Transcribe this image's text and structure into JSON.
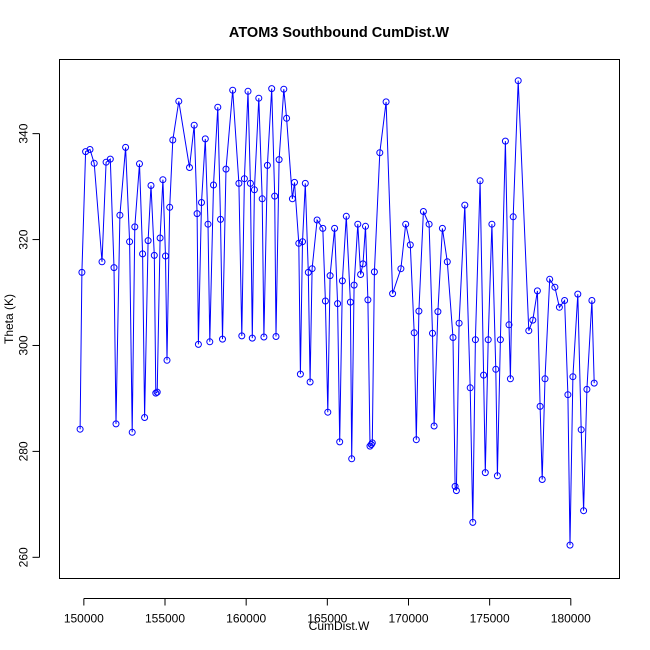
{
  "chart_data": {
    "type": "line",
    "title": "ATOM3 Southbound CumDist.W",
    "xlabel": "CumDist.W",
    "ylabel": "Theta (K)",
    "xlim": [
      148500,
      183000
    ],
    "ylim": [
      256,
      354
    ],
    "x_ticks": [
      150000,
      155000,
      160000,
      165000,
      170000,
      175000,
      180000
    ],
    "x_tick_labels": [
      "150000",
      "155000",
      "160000",
      "165000",
      "170000",
      "175000",
      "180000"
    ],
    "y_ticks": [
      260,
      280,
      300,
      320,
      340
    ],
    "y_tick_labels": [
      "260",
      "280",
      "300",
      "320",
      "340"
    ],
    "grid": false,
    "colors": {
      "series": "#0000ff",
      "axes": "#000000"
    },
    "series": [
      {
        "markers": "open-circle",
        "points": [
          [
            149770,
            284.2
          ],
          [
            149880,
            313.8
          ],
          [
            150110,
            336.6
          ],
          [
            150380,
            337.0
          ],
          [
            150640,
            334.4
          ],
          [
            151120,
            315.8
          ],
          [
            151370,
            334.6
          ],
          [
            151630,
            335.2
          ],
          [
            151860,
            314.7
          ],
          [
            151980,
            285.2
          ],
          [
            152220,
            324.6
          ],
          [
            152570,
            337.4
          ],
          [
            152820,
            319.6
          ],
          [
            152980,
            283.6
          ],
          [
            153140,
            322.4
          ],
          [
            153430,
            334.3
          ],
          [
            153620,
            317.3
          ],
          [
            153740,
            286.4
          ],
          [
            153960,
            319.8
          ],
          [
            154140,
            330.2
          ],
          [
            154340,
            317.0
          ],
          [
            154430,
            291.0
          ],
          [
            154520,
            291.2
          ],
          [
            154700,
            320.3
          ],
          [
            154870,
            331.3
          ],
          [
            155030,
            316.9
          ],
          [
            155120,
            297.2
          ],
          [
            155290,
            326.1
          ],
          [
            155480,
            338.8
          ],
          [
            155850,
            346.1
          ],
          [
            156510,
            333.6
          ],
          [
            156800,
            341.6
          ],
          [
            156980,
            324.9
          ],
          [
            157060,
            300.2
          ],
          [
            157250,
            327.0
          ],
          [
            157480,
            339.0
          ],
          [
            157650,
            322.9
          ],
          [
            157760,
            300.7
          ],
          [
            157990,
            330.3
          ],
          [
            158250,
            345.0
          ],
          [
            158420,
            323.8
          ],
          [
            158540,
            301.2
          ],
          [
            158760,
            333.3
          ],
          [
            159170,
            348.2
          ],
          [
            159550,
            330.6
          ],
          [
            159730,
            301.8
          ],
          [
            159890,
            331.5
          ],
          [
            160110,
            348.0
          ],
          [
            160260,
            330.6
          ],
          [
            160380,
            301.4
          ],
          [
            160510,
            329.4
          ],
          [
            160780,
            346.7
          ],
          [
            160990,
            327.7
          ],
          [
            161090,
            301.6
          ],
          [
            161310,
            334.0
          ],
          [
            161570,
            348.5
          ],
          [
            161760,
            328.2
          ],
          [
            161840,
            301.7
          ],
          [
            162030,
            335.1
          ],
          [
            162320,
            348.4
          ],
          [
            162490,
            342.9
          ],
          [
            162850,
            327.7
          ],
          [
            162980,
            330.8
          ],
          [
            163240,
            319.3
          ],
          [
            163340,
            294.6
          ],
          [
            163470,
            319.6
          ],
          [
            163640,
            330.6
          ],
          [
            163830,
            313.8
          ],
          [
            163940,
            293.1
          ],
          [
            164060,
            314.5
          ],
          [
            164370,
            323.7
          ],
          [
            164720,
            322.1
          ],
          [
            164880,
            308.4
          ],
          [
            165030,
            287.4
          ],
          [
            165170,
            313.2
          ],
          [
            165450,
            322.1
          ],
          [
            165630,
            307.9
          ],
          [
            165760,
            281.8
          ],
          [
            165930,
            312.2
          ],
          [
            166170,
            324.4
          ],
          [
            166420,
            308.2
          ],
          [
            166500,
            278.6
          ],
          [
            166650,
            311.4
          ],
          [
            166880,
            322.9
          ],
          [
            167050,
            313.4
          ],
          [
            167200,
            315.4
          ],
          [
            167350,
            322.5
          ],
          [
            167500,
            308.6
          ],
          [
            167630,
            281.0
          ],
          [
            167710,
            281.3
          ],
          [
            167770,
            281.6
          ],
          [
            167900,
            313.9
          ],
          [
            168230,
            336.4
          ],
          [
            168620,
            346.0
          ],
          [
            169020,
            309.8
          ],
          [
            169530,
            314.5
          ],
          [
            169830,
            322.9
          ],
          [
            170110,
            319.0
          ],
          [
            170350,
            302.4
          ],
          [
            170480,
            282.2
          ],
          [
            170640,
            306.5
          ],
          [
            170920,
            325.3
          ],
          [
            171270,
            322.9
          ],
          [
            171480,
            302.3
          ],
          [
            171580,
            284.8
          ],
          [
            171810,
            306.4
          ],
          [
            172090,
            322.1
          ],
          [
            172390,
            315.8
          ],
          [
            172740,
            301.5
          ],
          [
            172870,
            273.4
          ],
          [
            172950,
            272.6
          ],
          [
            173120,
            304.2
          ],
          [
            173470,
            326.5
          ],
          [
            173800,
            292.0
          ],
          [
            173960,
            266.6
          ],
          [
            174120,
            301.1
          ],
          [
            174410,
            331.1
          ],
          [
            174630,
            294.4
          ],
          [
            174730,
            276.0
          ],
          [
            174910,
            301.1
          ],
          [
            175140,
            322.9
          ],
          [
            175380,
            295.5
          ],
          [
            175480,
            275.4
          ],
          [
            175660,
            301.1
          ],
          [
            175970,
            338.6
          ],
          [
            176190,
            303.9
          ],
          [
            176280,
            293.7
          ],
          [
            176450,
            324.3
          ],
          [
            176760,
            350.0
          ],
          [
            177410,
            302.8
          ],
          [
            177660,
            304.8
          ],
          [
            177940,
            310.3
          ],
          [
            178110,
            288.5
          ],
          [
            178240,
            274.7
          ],
          [
            178410,
            293.7
          ],
          [
            178700,
            312.5
          ],
          [
            179020,
            311.0
          ],
          [
            179300,
            307.2
          ],
          [
            179620,
            308.5
          ],
          [
            179820,
            290.7
          ],
          [
            179950,
            262.3
          ],
          [
            180130,
            294.1
          ],
          [
            180430,
            309.7
          ],
          [
            180640,
            284.1
          ],
          [
            180790,
            268.8
          ],
          [
            180990,
            291.7
          ],
          [
            181300,
            308.5
          ],
          [
            181440,
            292.9
          ]
        ]
      }
    ]
  }
}
